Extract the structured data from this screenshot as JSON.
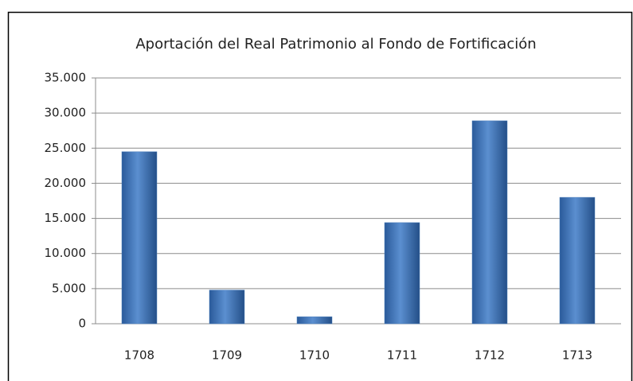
{
  "chart_data": {
    "type": "bar",
    "title": "Aportación del Real Patrimonio al Fondo de Fortificación",
    "categories": [
      "1708",
      "1709",
      "1710",
      "1711",
      "1712",
      "1713"
    ],
    "values": [
      24500,
      4800,
      1000,
      14400,
      28900,
      18000
    ],
    "color": "#4f81bd",
    "ylim": [
      0,
      35000
    ],
    "yticks": [
      0,
      {
        "value": 5000,
        "label": "5.000"
      },
      {
        "value": 10000,
        "label": "10.000"
      },
      {
        "value": 15000,
        "label": "15.000"
      },
      {
        "value": 20000,
        "label": "20.000"
      },
      {
        "value": 25000,
        "label": "25.000"
      },
      {
        "value": 30000,
        "label": "30.000"
      },
      {
        "value": 35000,
        "label": "35.000"
      }
    ],
    "grid": true
  }
}
